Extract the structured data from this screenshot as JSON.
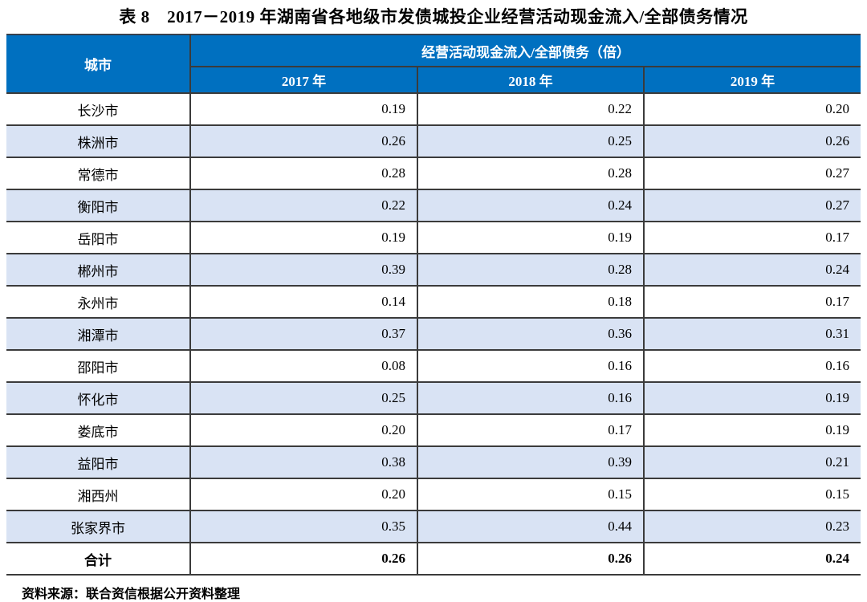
{
  "page": {
    "title": "表 8　2017－2019 年湖南省各地级市发债城投企业经营活动现金流入/全部债务情况",
    "source_note": "资料来源：联合资信根据公开资料整理"
  },
  "colors": {
    "header_bg": "#0070c0",
    "header_text": "#ffffff",
    "row_alt_bg": "#d9e3f4",
    "border": "#3b3b3b"
  },
  "table": {
    "city_header": "城市",
    "group_header": "经营活动现金流入/全部债务（倍）",
    "year_headers": [
      "2017 年",
      "2018 年",
      "2019 年"
    ],
    "rows": [
      {
        "city": "长沙市",
        "values": [
          "0.19",
          "0.22",
          "0.20"
        ]
      },
      {
        "city": "株洲市",
        "values": [
          "0.26",
          "0.25",
          "0.26"
        ]
      },
      {
        "city": "常德市",
        "values": [
          "0.28",
          "0.28",
          "0.27"
        ]
      },
      {
        "city": "衡阳市",
        "values": [
          "0.22",
          "0.24",
          "0.27"
        ]
      },
      {
        "city": "岳阳市",
        "values": [
          "0.19",
          "0.19",
          "0.17"
        ]
      },
      {
        "city": "郴州市",
        "values": [
          "0.39",
          "0.28",
          "0.24"
        ]
      },
      {
        "city": "永州市",
        "values": [
          "0.14",
          "0.18",
          "0.17"
        ]
      },
      {
        "city": "湘潭市",
        "values": [
          "0.37",
          "0.36",
          "0.31"
        ]
      },
      {
        "city": "邵阳市",
        "values": [
          "0.08",
          "0.16",
          "0.16"
        ]
      },
      {
        "city": "怀化市",
        "values": [
          "0.25",
          "0.16",
          "0.19"
        ]
      },
      {
        "city": "娄底市",
        "values": [
          "0.20",
          "0.17",
          "0.19"
        ]
      },
      {
        "city": "益阳市",
        "values": [
          "0.38",
          "0.39",
          "0.21"
        ]
      },
      {
        "city": "湘西州",
        "values": [
          "0.20",
          "0.15",
          "0.15"
        ]
      },
      {
        "city": "张家界市",
        "values": [
          "0.35",
          "0.44",
          "0.23"
        ]
      }
    ],
    "total_row": {
      "label": "合计",
      "values": [
        "0.26",
        "0.26",
        "0.24"
      ]
    }
  }
}
